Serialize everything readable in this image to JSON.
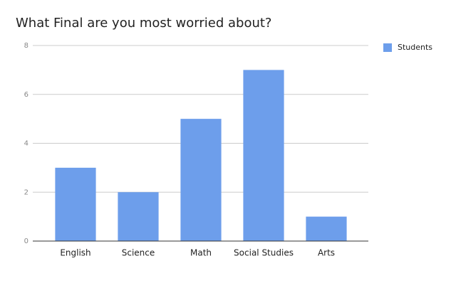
{
  "chart_data": {
    "type": "bar",
    "title": "What Final are you most worried about?",
    "categories": [
      "English",
      "Science",
      "Math",
      "Social Studies",
      "Arts"
    ],
    "series": [
      {
        "name": "Students",
        "color": "#6d9eeb",
        "values": [
          3,
          2,
          5,
          7,
          1
        ]
      }
    ],
    "ylim": [
      0,
      8
    ],
    "yticks": [
      0,
      2,
      4,
      6,
      8
    ],
    "grid": true,
    "legend": "right"
  }
}
